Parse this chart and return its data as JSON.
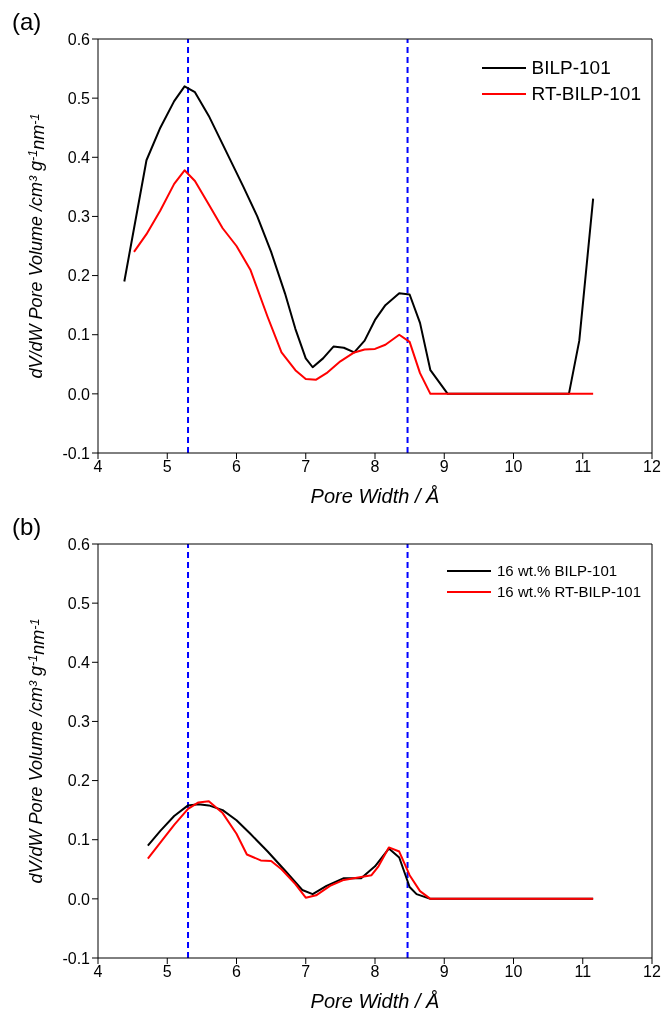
{
  "chart_data": [
    {
      "type": "line",
      "title": "(a)",
      "xlabel": "Pore Width / Å",
      "ylabel": "dV/dW Pore Volume /cm³ g$^{-1}$nm$^{-1}$",
      "xlim": [
        4,
        12
      ],
      "xticks": [
        4,
        5,
        6,
        7,
        8,
        9,
        10,
        11,
        12
      ],
      "ylim": [
        -0.1,
        0.6
      ],
      "yticks": [
        -0.1,
        {
          "value": 0,
          "label": "0.0"
        },
        0.1,
        0.2,
        0.3,
        0.4,
        0.5,
        0.6
      ],
      "legend": "top right",
      "marker": "none",
      "line_style": "solid",
      "ref_lines": [
        {
          "axis": "x",
          "value": 5.3,
          "color": "#0000ff",
          "line_style": "dashed"
        },
        {
          "axis": "x",
          "value": 8.47,
          "color": "#0000ff",
          "line_style": "dashed"
        }
      ],
      "series": [
        {
          "name": "BILP-101",
          "color": "#000000",
          "x": [
            4.38,
            4.7,
            4.9,
            5.1,
            5.25,
            5.4,
            5.6,
            5.85,
            6.1,
            6.3,
            6.5,
            6.7,
            6.85,
            7.0,
            7.1,
            7.25,
            7.4,
            7.55,
            7.7,
            7.85,
            8.0,
            8.15,
            8.35,
            8.5,
            8.65,
            8.8,
            9.05,
            10.8,
            10.95,
            11.15
          ],
          "values": [
            0.19,
            0.395,
            0.45,
            0.495,
            0.52,
            0.51,
            0.47,
            0.41,
            0.35,
            0.3,
            0.24,
            0.17,
            0.11,
            0.06,
            0.045,
            0.06,
            0.08,
            0.078,
            0.07,
            0.09,
            0.125,
            0.15,
            0.17,
            0.168,
            0.12,
            0.04,
            0,
            0,
            0.09,
            0.33
          ]
        },
        {
          "name": "RT-BILP-101",
          "color": "#ff0000",
          "x": [
            4.52,
            4.7,
            4.9,
            5.1,
            5.25,
            5.4,
            5.6,
            5.8,
            6.0,
            6.2,
            6.45,
            6.65,
            6.85,
            7.0,
            7.15,
            7.3,
            7.5,
            7.7,
            7.85,
            8.0,
            8.15,
            8.35,
            8.5,
            8.65,
            8.8,
            11.15
          ],
          "values": [
            0.24,
            0.27,
            0.31,
            0.355,
            0.378,
            0.36,
            0.32,
            0.28,
            0.25,
            0.21,
            0.13,
            0.07,
            0.04,
            0.025,
            0.024,
            0.035,
            0.055,
            0.07,
            0.075,
            0.076,
            0.083,
            0.1,
            0.088,
            0.035,
            0,
            0
          ]
        }
      ]
    },
    {
      "type": "line",
      "title": "(b)",
      "xlabel": "Pore Width / Å",
      "ylabel": "dV/dW Pore Volume /cm³ g$^{-1}$nm$^{-1}$",
      "xlim": [
        4,
        12
      ],
      "xticks": [
        4,
        5,
        6,
        7,
        8,
        9,
        10,
        11,
        12
      ],
      "ylim": [
        -0.1,
        0.6
      ],
      "yticks": [
        -0.1,
        {
          "value": 0,
          "label": "0.0"
        },
        0.1,
        0.2,
        0.3,
        0.4,
        0.5,
        0.6
      ],
      "legend": "top right",
      "marker": "none",
      "line_style": "solid",
      "ref_lines": [
        {
          "axis": "x",
          "value": 5.3,
          "color": "#0000ff",
          "line_style": "dashed"
        },
        {
          "axis": "x",
          "value": 8.47,
          "color": "#0000ff",
          "line_style": "dashed"
        }
      ],
      "series": [
        {
          "name": "16 wt.% BILP-101",
          "color": "#000000",
          "x": [
            4.72,
            4.9,
            5.1,
            5.3,
            5.45,
            5.6,
            5.8,
            6.0,
            6.2,
            6.45,
            6.7,
            6.95,
            7.1,
            7.3,
            7.55,
            7.8,
            8.0,
            8.2,
            8.35,
            8.5,
            8.6,
            8.8,
            11.15
          ],
          "values": [
            0.09,
            0.115,
            0.14,
            0.158,
            0.16,
            0.158,
            0.15,
            0.133,
            0.11,
            0.08,
            0.048,
            0.015,
            0.008,
            0.022,
            0.035,
            0.035,
            0.055,
            0.085,
            0.07,
            0.02,
            0.008,
            0,
            0
          ]
        },
        {
          "name": "16 wt.% RT-BILP-101",
          "color": "#ff0000",
          "x": [
            4.72,
            4.9,
            5.1,
            5.3,
            5.45,
            5.6,
            5.8,
            6.0,
            6.15,
            6.35,
            6.5,
            6.65,
            6.85,
            7.0,
            7.15,
            7.35,
            7.55,
            7.8,
            7.95,
            8.05,
            8.2,
            8.35,
            8.5,
            8.65,
            8.8,
            11.15
          ],
          "values": [
            0.068,
            0.095,
            0.125,
            0.152,
            0.163,
            0.165,
            0.145,
            0.11,
            0.075,
            0.065,
            0.064,
            0.05,
            0.025,
            0.002,
            0.006,
            0.022,
            0.032,
            0.037,
            0.04,
            0.055,
            0.087,
            0.08,
            0.04,
            0.013,
            0,
            0
          ]
        }
      ]
    }
  ]
}
